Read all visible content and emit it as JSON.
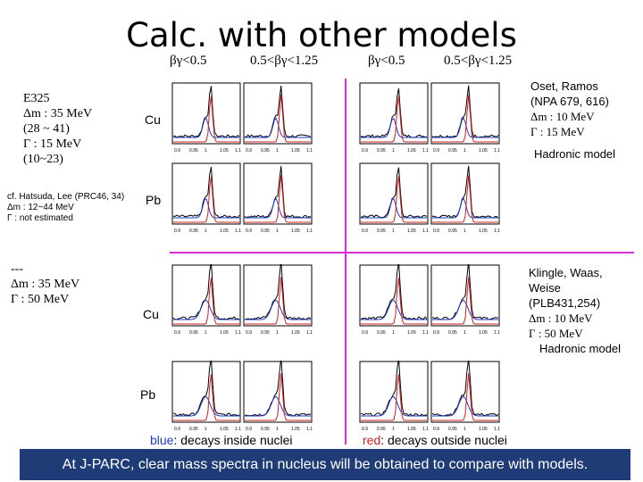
{
  "title": "Calc. with other models",
  "column_headers": [
    "βγ<0.5",
    "0.5<βγ<1.25",
    "βγ<0.5",
    "0.5<βγ<1.25"
  ],
  "row_labels": [
    "Cu",
    "Pb",
    "Cu",
    "Pb"
  ],
  "left_notes": {
    "e325": [
      "E325",
      "Δm : 35 MeV",
      "(28 ~ 41)",
      "Γ : 15 MeV",
      "(10~23)"
    ],
    "hatsuda": [
      "cf. Hatsuda, Lee (PRC46, 34)",
      "Δm : 12~44 MeV",
      "Γ : not estimated"
    ],
    "third": [
      "---",
      "Δm : 35 MeV",
      "Γ : 50 MeV"
    ]
  },
  "right_notes": {
    "oset": [
      "Oset, Ramos",
      "(NPA 679, 616)",
      "Δm : 10 MeV",
      "Γ : 15 MeV"
    ],
    "oset_model": "Hadronic model",
    "klingl": [
      "Klingle, Waas,",
      "Weise",
      "(PLB431,254)",
      "Δm : 10 MeV",
      "Γ : 50 MeV"
    ],
    "klingl_model": "Hadronic model"
  },
  "legend": {
    "blue_key": "blue",
    "blue_text": ": decays inside nuclei",
    "red_key": "red",
    "red_text": ": decays outside nuclei"
  },
  "banner": "At J-PARC, clear mass spectra in nucleus will be obtained to compare with models.",
  "axis_ticks": [
    "0.9",
    "0.95",
    "1",
    "1.05",
    "1.1"
  ],
  "colors": {
    "divider": "#d531d5",
    "banner_bg": "#1f3c76",
    "inside": "#1f3cc8",
    "outside": "#d02020",
    "legend_blue": "#1f3cc8",
    "legend_red": "#d02020"
  }
}
